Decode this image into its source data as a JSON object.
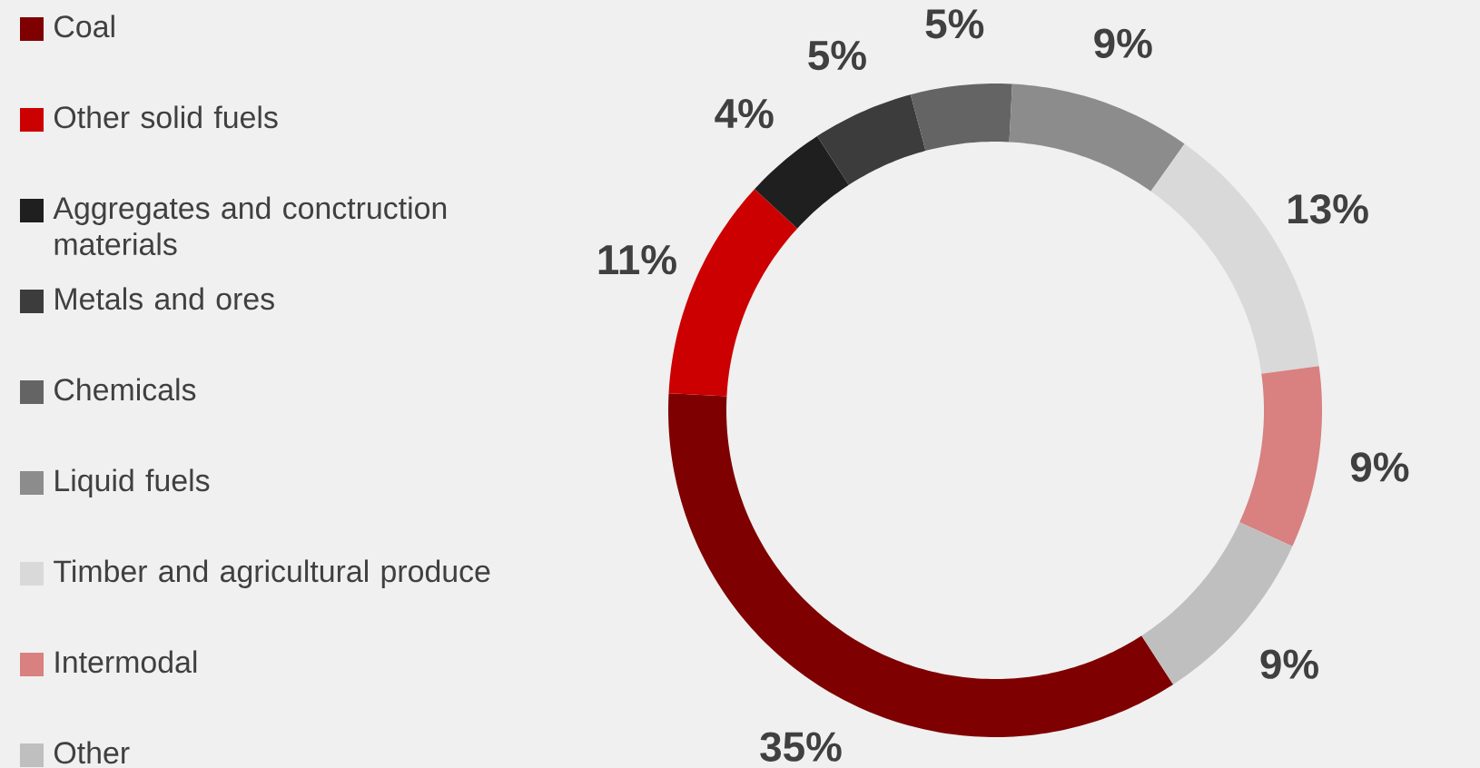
{
  "chart_data": {
    "type": "donut",
    "categories": [
      "Coal",
      "Other solid fuels",
      "Aggregates and conctruction materials",
      "Metals and ores",
      "Chemicals",
      "Liquid fuels",
      "Timber and agricultural produce",
      "Intermodal",
      "Other"
    ],
    "values": [
      35,
      11,
      4,
      5,
      5,
      9,
      13,
      9,
      9
    ],
    "value_labels": [
      "35%",
      "11%",
      "4%",
      "5%",
      "5%",
      "9%",
      "13%",
      "9%",
      "9%"
    ],
    "colors": [
      "#7f0000",
      "#cc0000",
      "#1f1f1f",
      "#3c3c3c",
      "#646464",
      "#8c8c8c",
      "#d9d9d9",
      "#d98080",
      "#bfbfbf"
    ],
    "legend": "left"
  }
}
